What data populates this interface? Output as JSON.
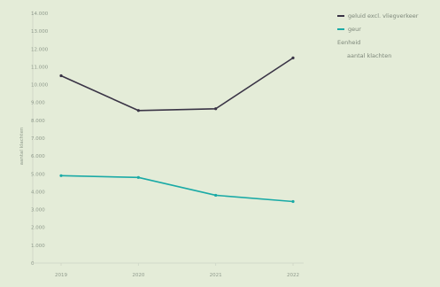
{
  "chart_data": {
    "type": "line",
    "title": "",
    "xlabel": "",
    "ylabel": "aantal klachten",
    "categories": [
      "2019",
      "2020",
      "2021",
      "2022"
    ],
    "ylim": [
      0,
      14000
    ],
    "yticks": [
      "0",
      "1.000",
      "2.000",
      "3.000",
      "4.000",
      "5.000",
      "6.000",
      "7.000",
      "8.000",
      "9.000",
      "10.000",
      "11.000",
      "12.000",
      "13.000",
      "14.000"
    ],
    "grid": false,
    "legend_position": "top-right",
    "series": [
      {
        "name": "geluid excl. vliegverkeer",
        "color": "#3a3446",
        "values": [
          10500,
          8550,
          8650,
          11500
        ]
      },
      {
        "name": "geur",
        "color": "#1aaaa6",
        "values": [
          4900,
          4800,
          3800,
          3450
        ]
      }
    ],
    "legend_group_label": "Eenheid",
    "legend_unit_label": "aantal klachten"
  }
}
